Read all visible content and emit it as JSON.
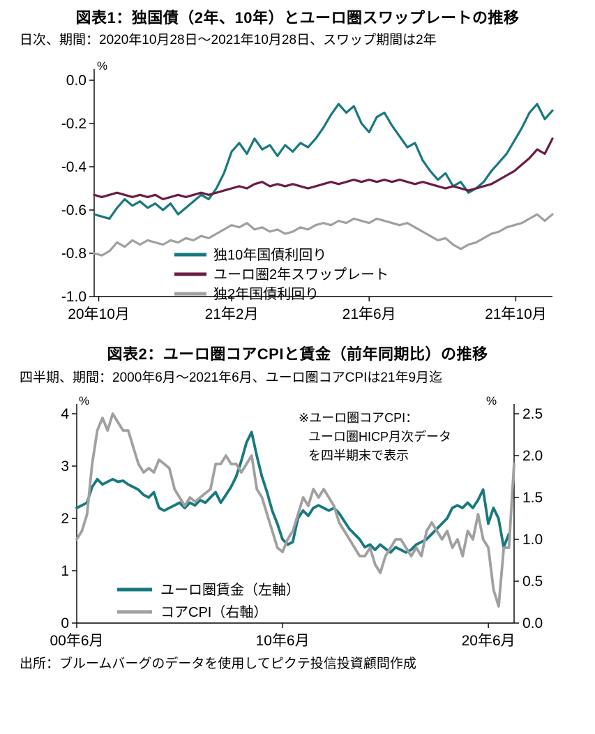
{
  "page": {
    "background": "#ffffff",
    "footer_source": "出所：ブルームバーグのデータを使用してピクテ投信投資顧問作成"
  },
  "colors": {
    "teal": "#17797e",
    "maroon": "#6b1c44",
    "gray": "#a0a0a0",
    "text": "#000000"
  },
  "chart_data": [
    {
      "id": "chart1",
      "type": "line",
      "title": "図表1：独国債（2年、10年）とユーロ圏スワップレートの推移",
      "subtitle": "日次、期間：2020年10月28日～2021年10月28日、スワップ期間は2年",
      "legend_position": "inside-bottom-left",
      "grid": false,
      "axes": {
        "left": {
          "unit": "%",
          "min": -1.0,
          "max": 0.0,
          "ticks": [
            {
              "v": 0.0,
              "label": "0.0"
            },
            {
              "v": -0.2,
              "label": "-0.2"
            },
            {
              "v": -0.4,
              "label": "-0.4"
            },
            {
              "v": -0.6,
              "label": "-0.6"
            },
            {
              "v": -0.8,
              "label": "-0.8"
            },
            {
              "v": -1.0,
              "label": "-1.0"
            }
          ]
        }
      },
      "x_axis": {
        "range": "2020-10-28 to 2021-10-28",
        "ticks": [
          {
            "pos": 0.01,
            "label": "20年10月"
          },
          {
            "pos": 0.3,
            "label": "21年2月"
          },
          {
            "pos": 0.6,
            "label": "21年6月"
          },
          {
            "pos": 0.92,
            "label": "21年10月"
          }
        ]
      },
      "series": [
        {
          "name": "独10年国債利回り",
          "axis": "left",
          "color": "#17797e",
          "values": [
            -0.62,
            -0.63,
            -0.64,
            -0.59,
            -0.55,
            -0.58,
            -0.56,
            -0.59,
            -0.57,
            -0.6,
            -0.57,
            -0.62,
            -0.59,
            -0.56,
            -0.53,
            -0.55,
            -0.5,
            -0.43,
            -0.33,
            -0.29,
            -0.34,
            -0.27,
            -0.32,
            -0.3,
            -0.35,
            -0.3,
            -0.33,
            -0.29,
            -0.31,
            -0.27,
            -0.22,
            -0.16,
            -0.11,
            -0.15,
            -0.12,
            -0.2,
            -0.24,
            -0.17,
            -0.15,
            -0.21,
            -0.26,
            -0.31,
            -0.29,
            -0.37,
            -0.42,
            -0.46,
            -0.43,
            -0.49,
            -0.47,
            -0.52,
            -0.5,
            -0.47,
            -0.42,
            -0.38,
            -0.34,
            -0.28,
            -0.22,
            -0.15,
            -0.11,
            -0.18,
            -0.14
          ]
        },
        {
          "name": "ユーロ圏2年スワップレート",
          "axis": "left",
          "color": "#6b1c44",
          "values": [
            -0.53,
            -0.54,
            -0.53,
            -0.52,
            -0.53,
            -0.54,
            -0.53,
            -0.54,
            -0.53,
            -0.55,
            -0.54,
            -0.53,
            -0.54,
            -0.53,
            -0.52,
            -0.53,
            -0.52,
            -0.51,
            -0.5,
            -0.49,
            -0.5,
            -0.48,
            -0.47,
            -0.49,
            -0.48,
            -0.49,
            -0.48,
            -0.49,
            -0.5,
            -0.49,
            -0.48,
            -0.47,
            -0.48,
            -0.47,
            -0.46,
            -0.47,
            -0.46,
            -0.47,
            -0.46,
            -0.47,
            -0.46,
            -0.47,
            -0.48,
            -0.47,
            -0.48,
            -0.49,
            -0.5,
            -0.49,
            -0.5,
            -0.51,
            -0.5,
            -0.49,
            -0.48,
            -0.46,
            -0.44,
            -0.42,
            -0.39,
            -0.36,
            -0.32,
            -0.34,
            -0.27
          ]
        },
        {
          "name": "独2年国債利回り",
          "axis": "left",
          "color": "#a0a0a0",
          "values": [
            -0.8,
            -0.81,
            -0.79,
            -0.75,
            -0.77,
            -0.74,
            -0.76,
            -0.74,
            -0.75,
            -0.76,
            -0.74,
            -0.75,
            -0.73,
            -0.74,
            -0.72,
            -0.73,
            -0.71,
            -0.69,
            -0.67,
            -0.68,
            -0.66,
            -0.69,
            -0.68,
            -0.7,
            -0.69,
            -0.71,
            -0.7,
            -0.68,
            -0.69,
            -0.67,
            -0.66,
            -0.67,
            -0.65,
            -0.66,
            -0.64,
            -0.65,
            -0.66,
            -0.64,
            -0.65,
            -0.66,
            -0.67,
            -0.66,
            -0.68,
            -0.7,
            -0.72,
            -0.74,
            -0.73,
            -0.76,
            -0.78,
            -0.76,
            -0.75,
            -0.73,
            -0.71,
            -0.7,
            -0.68,
            -0.67,
            -0.66,
            -0.64,
            -0.62,
            -0.65,
            -0.62
          ]
        }
      ]
    },
    {
      "id": "chart2",
      "type": "line",
      "title": "図表2：ユーロ圏コアCPIと賃金（前年同期比）の推移",
      "subtitle": "四半期、期間：2000年6月～2021年6月、ユーロ圏コアCPIは21年9月迄",
      "legend_position": "inside-bottom-left",
      "grid": false,
      "annotation": {
        "lines": [
          "※ユーロ圏コアCPI：",
          "ユーロ圏HICP月次データ",
          "を四半期末で表示"
        ]
      },
      "axes": {
        "left": {
          "unit": "%",
          "min": 0,
          "max": 4,
          "ticks": [
            {
              "v": 4,
              "label": "4"
            },
            {
              "v": 3,
              "label": "3"
            },
            {
              "v": 2,
              "label": "2"
            },
            {
              "v": 1,
              "label": "1"
            },
            {
              "v": 0,
              "label": "0"
            }
          ]
        },
        "right": {
          "unit": "%",
          "min": 0,
          "max": 2.5,
          "ticks": [
            {
              "v": 2.5,
              "label": "2.5"
            },
            {
              "v": 2.0,
              "label": "2.0"
            },
            {
              "v": 1.5,
              "label": "1.5"
            },
            {
              "v": 1.0,
              "label": "1.0"
            },
            {
              "v": 0.5,
              "label": "0.5"
            },
            {
              "v": 0.0,
              "label": "0.0"
            }
          ]
        }
      },
      "x_axis": {
        "range": "2000Q2 to 2021Q3, quarterly",
        "ticks": [
          {
            "pos": 0.0,
            "label": "00年6月"
          },
          {
            "pos": 0.4706,
            "label": "10年6月"
          },
          {
            "pos": 0.9412,
            "label": "20年6月"
          }
        ]
      },
      "series": [
        {
          "name": "ユーロ圏賃金（左軸）",
          "axis": "left",
          "color": "#17797e",
          "x_span": 0.988,
          "values": [
            2.2,
            2.25,
            2.3,
            2.6,
            2.75,
            2.65,
            2.7,
            2.75,
            2.7,
            2.72,
            2.65,
            2.6,
            2.55,
            2.45,
            2.4,
            2.5,
            2.2,
            2.15,
            2.2,
            2.25,
            2.3,
            2.2,
            2.3,
            2.25,
            2.35,
            2.3,
            2.4,
            2.5,
            2.3,
            2.45,
            2.6,
            2.8,
            3.1,
            3.45,
            3.65,
            3.2,
            2.8,
            2.5,
            2.15,
            1.9,
            1.6,
            1.5,
            1.55,
            2.0,
            2.15,
            2.05,
            2.2,
            2.25,
            2.2,
            2.15,
            2.2,
            2.1,
            1.95,
            1.8,
            1.7,
            1.6,
            1.45,
            1.5,
            1.4,
            1.5,
            1.42,
            1.35,
            1.45,
            1.4,
            1.35,
            1.4,
            1.5,
            1.55,
            1.6,
            1.7,
            1.8,
            1.9,
            2.0,
            2.2,
            2.25,
            2.2,
            2.3,
            2.2,
            2.35,
            2.55,
            1.9,
            2.2,
            2.0,
            1.45,
            1.7
          ]
        },
        {
          "name": "コアCPI（右軸）",
          "axis": "right",
          "color": "#a0a0a0",
          "x_span": 1.0,
          "values": [
            1.0,
            1.1,
            1.3,
            1.9,
            2.3,
            2.45,
            2.3,
            2.5,
            2.4,
            2.3,
            2.3,
            2.1,
            1.9,
            1.8,
            1.85,
            1.8,
            1.95,
            1.9,
            1.85,
            1.6,
            1.5,
            1.4,
            1.5,
            1.45,
            1.5,
            1.55,
            1.6,
            1.9,
            1.9,
            2.0,
            1.9,
            1.9,
            1.8,
            1.9,
            2.0,
            1.6,
            1.5,
            1.3,
            1.1,
            0.9,
            0.85,
            1.0,
            1.1,
            1.3,
            1.5,
            1.4,
            1.6,
            1.5,
            1.6,
            1.5,
            1.4,
            1.2,
            1.1,
            1.0,
            0.9,
            0.8,
            0.8,
            0.9,
            0.7,
            0.6,
            0.8,
            0.9,
            1.0,
            1.0,
            0.9,
            0.8,
            0.9,
            0.8,
            1.1,
            1.2,
            1.1,
            1.0,
            1.1,
            0.9,
            1.0,
            0.8,
            1.1,
            1.0,
            1.3,
            1.0,
            0.9,
            0.4,
            0.2,
            0.9,
            0.9,
            1.9
          ]
        }
      ]
    }
  ]
}
